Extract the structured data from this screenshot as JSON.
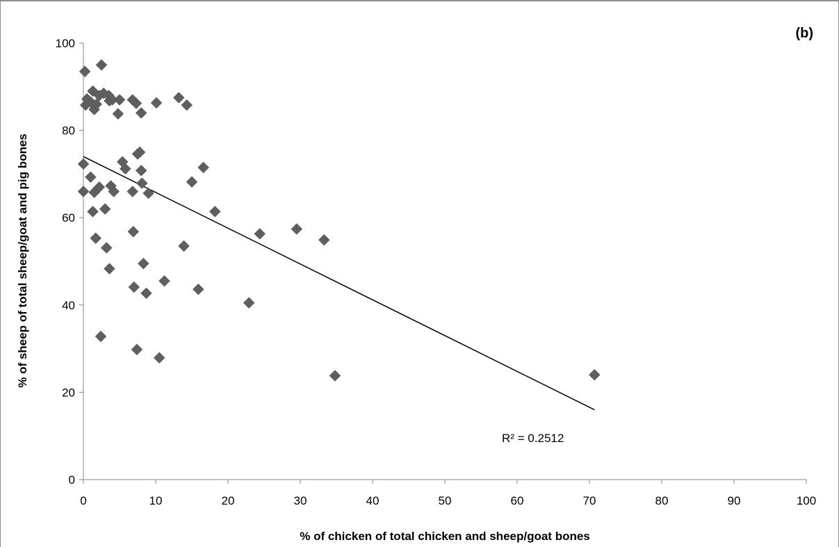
{
  "chart_data": {
    "type": "scatter",
    "panel_label": "(b)",
    "xlabel": "% of chicken of total chicken and sheep/goat bones",
    "ylabel": "% of sheep of total sheep/goat and pig bones",
    "xlim": [
      0,
      100
    ],
    "ylim": [
      0,
      100
    ],
    "x_ticks": [
      "0",
      "10",
      "20",
      "30",
      "40",
      "50",
      "60",
      "70",
      "80",
      "90",
      "100"
    ],
    "y_ticks": [
      "0",
      "20",
      "40",
      "60",
      "80",
      "100"
    ],
    "grid": false,
    "marker": "diamond",
    "marker_color": "#5f5f5f",
    "trendline": {
      "type": "linear",
      "x": [
        0,
        70.7
      ],
      "y": [
        74.0,
        16.0
      ],
      "color": "#000000",
      "label": "R² = 0.2512"
    },
    "points": [
      {
        "x": 0.2,
        "y": 93.5
      },
      {
        "x": 2.5,
        "y": 95.0
      },
      {
        "x": 0.3,
        "y": 85.8
      },
      {
        "x": 0.5,
        "y": 87.2
      },
      {
        "x": 1.0,
        "y": 86.5
      },
      {
        "x": 1.3,
        "y": 89.0
      },
      {
        "x": 1.5,
        "y": 84.8
      },
      {
        "x": 1.8,
        "y": 86.0
      },
      {
        "x": 2.2,
        "y": 88.0
      },
      {
        "x": 2.8,
        "y": 88.5
      },
      {
        "x": 3.5,
        "y": 88.0
      },
      {
        "x": 3.6,
        "y": 86.8
      },
      {
        "x": 4.0,
        "y": 87.0
      },
      {
        "x": 4.8,
        "y": 83.8
      },
      {
        "x": 5.0,
        "y": 87.0
      },
      {
        "x": 6.8,
        "y": 87.0
      },
      {
        "x": 7.3,
        "y": 86.2
      },
      {
        "x": 8.0,
        "y": 84.0
      },
      {
        "x": 10.1,
        "y": 86.3
      },
      {
        "x": 13.2,
        "y": 87.5
      },
      {
        "x": 14.3,
        "y": 85.8
      },
      {
        "x": 0.0,
        "y": 72.3
      },
      {
        "x": 0.0,
        "y": 66.0
      },
      {
        "x": 1.0,
        "y": 69.3
      },
      {
        "x": 1.5,
        "y": 65.8
      },
      {
        "x": 2.2,
        "y": 67.0
      },
      {
        "x": 1.3,
        "y": 61.4
      },
      {
        "x": 3.0,
        "y": 62.0
      },
      {
        "x": 3.8,
        "y": 67.3
      },
      {
        "x": 4.2,
        "y": 66.0
      },
      {
        "x": 5.4,
        "y": 72.8
      },
      {
        "x": 5.8,
        "y": 71.2
      },
      {
        "x": 7.5,
        "y": 74.6
      },
      {
        "x": 7.8,
        "y": 75.0
      },
      {
        "x": 8.0,
        "y": 70.8
      },
      {
        "x": 8.1,
        "y": 67.9
      },
      {
        "x": 6.8,
        "y": 66.0
      },
      {
        "x": 9.0,
        "y": 65.6
      },
      {
        "x": 16.6,
        "y": 71.5
      },
      {
        "x": 15.0,
        "y": 68.2
      },
      {
        "x": 18.2,
        "y": 61.4
      },
      {
        "x": 1.7,
        "y": 55.3
      },
      {
        "x": 3.2,
        "y": 53.1
      },
      {
        "x": 3.6,
        "y": 48.3
      },
      {
        "x": 6.9,
        "y": 56.8
      },
      {
        "x": 8.3,
        "y": 49.5
      },
      {
        "x": 7.0,
        "y": 44.1
      },
      {
        "x": 8.7,
        "y": 42.7
      },
      {
        "x": 11.2,
        "y": 45.5
      },
      {
        "x": 13.9,
        "y": 53.5
      },
      {
        "x": 15.9,
        "y": 43.6
      },
      {
        "x": 24.4,
        "y": 56.3
      },
      {
        "x": 29.5,
        "y": 57.4
      },
      {
        "x": 33.3,
        "y": 54.9
      },
      {
        "x": 22.9,
        "y": 40.5
      },
      {
        "x": 2.4,
        "y": 32.8
      },
      {
        "x": 7.4,
        "y": 29.8
      },
      {
        "x": 10.5,
        "y": 27.9
      },
      {
        "x": 34.8,
        "y": 23.8
      },
      {
        "x": 70.7,
        "y": 24.0
      }
    ]
  }
}
